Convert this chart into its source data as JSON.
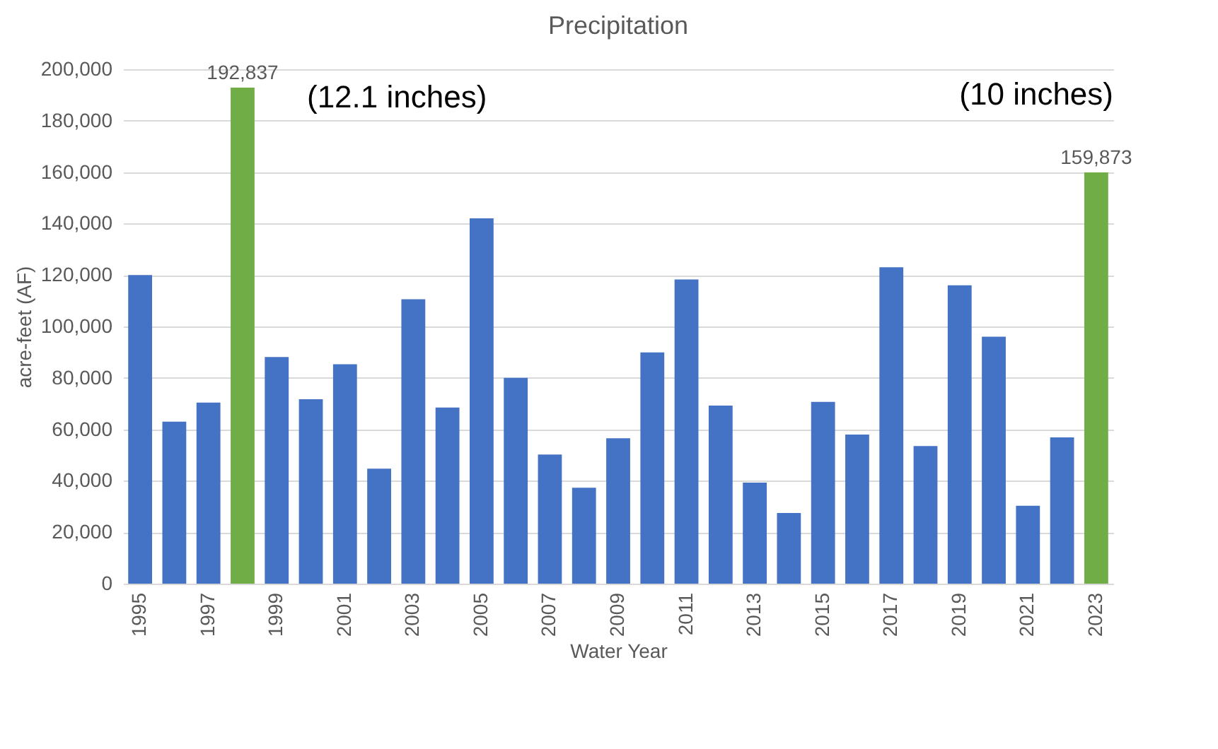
{
  "chart_data": {
    "type": "bar",
    "title": "Precipitation",
    "xlabel": "Water Year",
    "ylabel": "acre-feet (AF)",
    "categories": [
      "1995",
      null,
      "1997",
      null,
      "1999",
      null,
      "2001",
      null,
      "2003",
      null,
      "2005",
      null,
      "2007",
      null,
      "2009",
      null,
      "2011",
      null,
      "2013",
      null,
      "2015",
      null,
      "2017",
      null,
      "2019",
      null,
      "2021",
      null,
      "2023"
    ],
    "values": [
      120000,
      63000,
      70400,
      192837,
      88100,
      71700,
      85300,
      44700,
      110600,
      68500,
      142000,
      80000,
      50200,
      37300,
      56500,
      89900,
      118300,
      69200,
      39300,
      27500,
      70700,
      58000,
      123000,
      53500,
      116000,
      96000,
      30300,
      56900,
      159873
    ],
    "colors": [
      "#4472c4",
      "#4472c4",
      "#4472c4",
      "#70ad47",
      "#4472c4",
      "#4472c4",
      "#4472c4",
      "#4472c4",
      "#4472c4",
      "#4472c4",
      "#4472c4",
      "#4472c4",
      "#4472c4",
      "#4472c4",
      "#4472c4",
      "#4472c4",
      "#4472c4",
      "#4472c4",
      "#4472c4",
      "#4472c4",
      "#4472c4",
      "#4472c4",
      "#4472c4",
      "#4472c4",
      "#4472c4",
      "#4472c4",
      "#4472c4",
      "#4472c4",
      "#70ad47"
    ],
    "value_labels": [
      null,
      null,
      null,
      "192,837",
      null,
      null,
      null,
      null,
      null,
      null,
      null,
      null,
      null,
      null,
      null,
      null,
      null,
      null,
      null,
      null,
      null,
      null,
      null,
      null,
      null,
      null,
      null,
      null,
      "159,873"
    ],
    "ylim": [
      0,
      200000
    ],
    "yticks": [
      0,
      {
        "value": 20000,
        "label": "20,000"
      },
      {
        "value": 40000,
        "label": "40,000"
      },
      {
        "value": 60000,
        "label": "60,000"
      },
      {
        "value": 80000,
        "label": "80,000"
      },
      {
        "value": 100000,
        "label": "100,000"
      },
      {
        "value": 120000,
        "label": "120,000"
      },
      {
        "value": 140000,
        "label": "140,000"
      },
      {
        "value": 160000,
        "label": "160,000"
      },
      {
        "value": 180000,
        "label": "180,000"
      },
      {
        "value": 200000,
        "label": "200,000"
      }
    ],
    "grid": "y",
    "annotations": [
      "(12.1 inches)",
      "(10 inches)"
    ]
  }
}
